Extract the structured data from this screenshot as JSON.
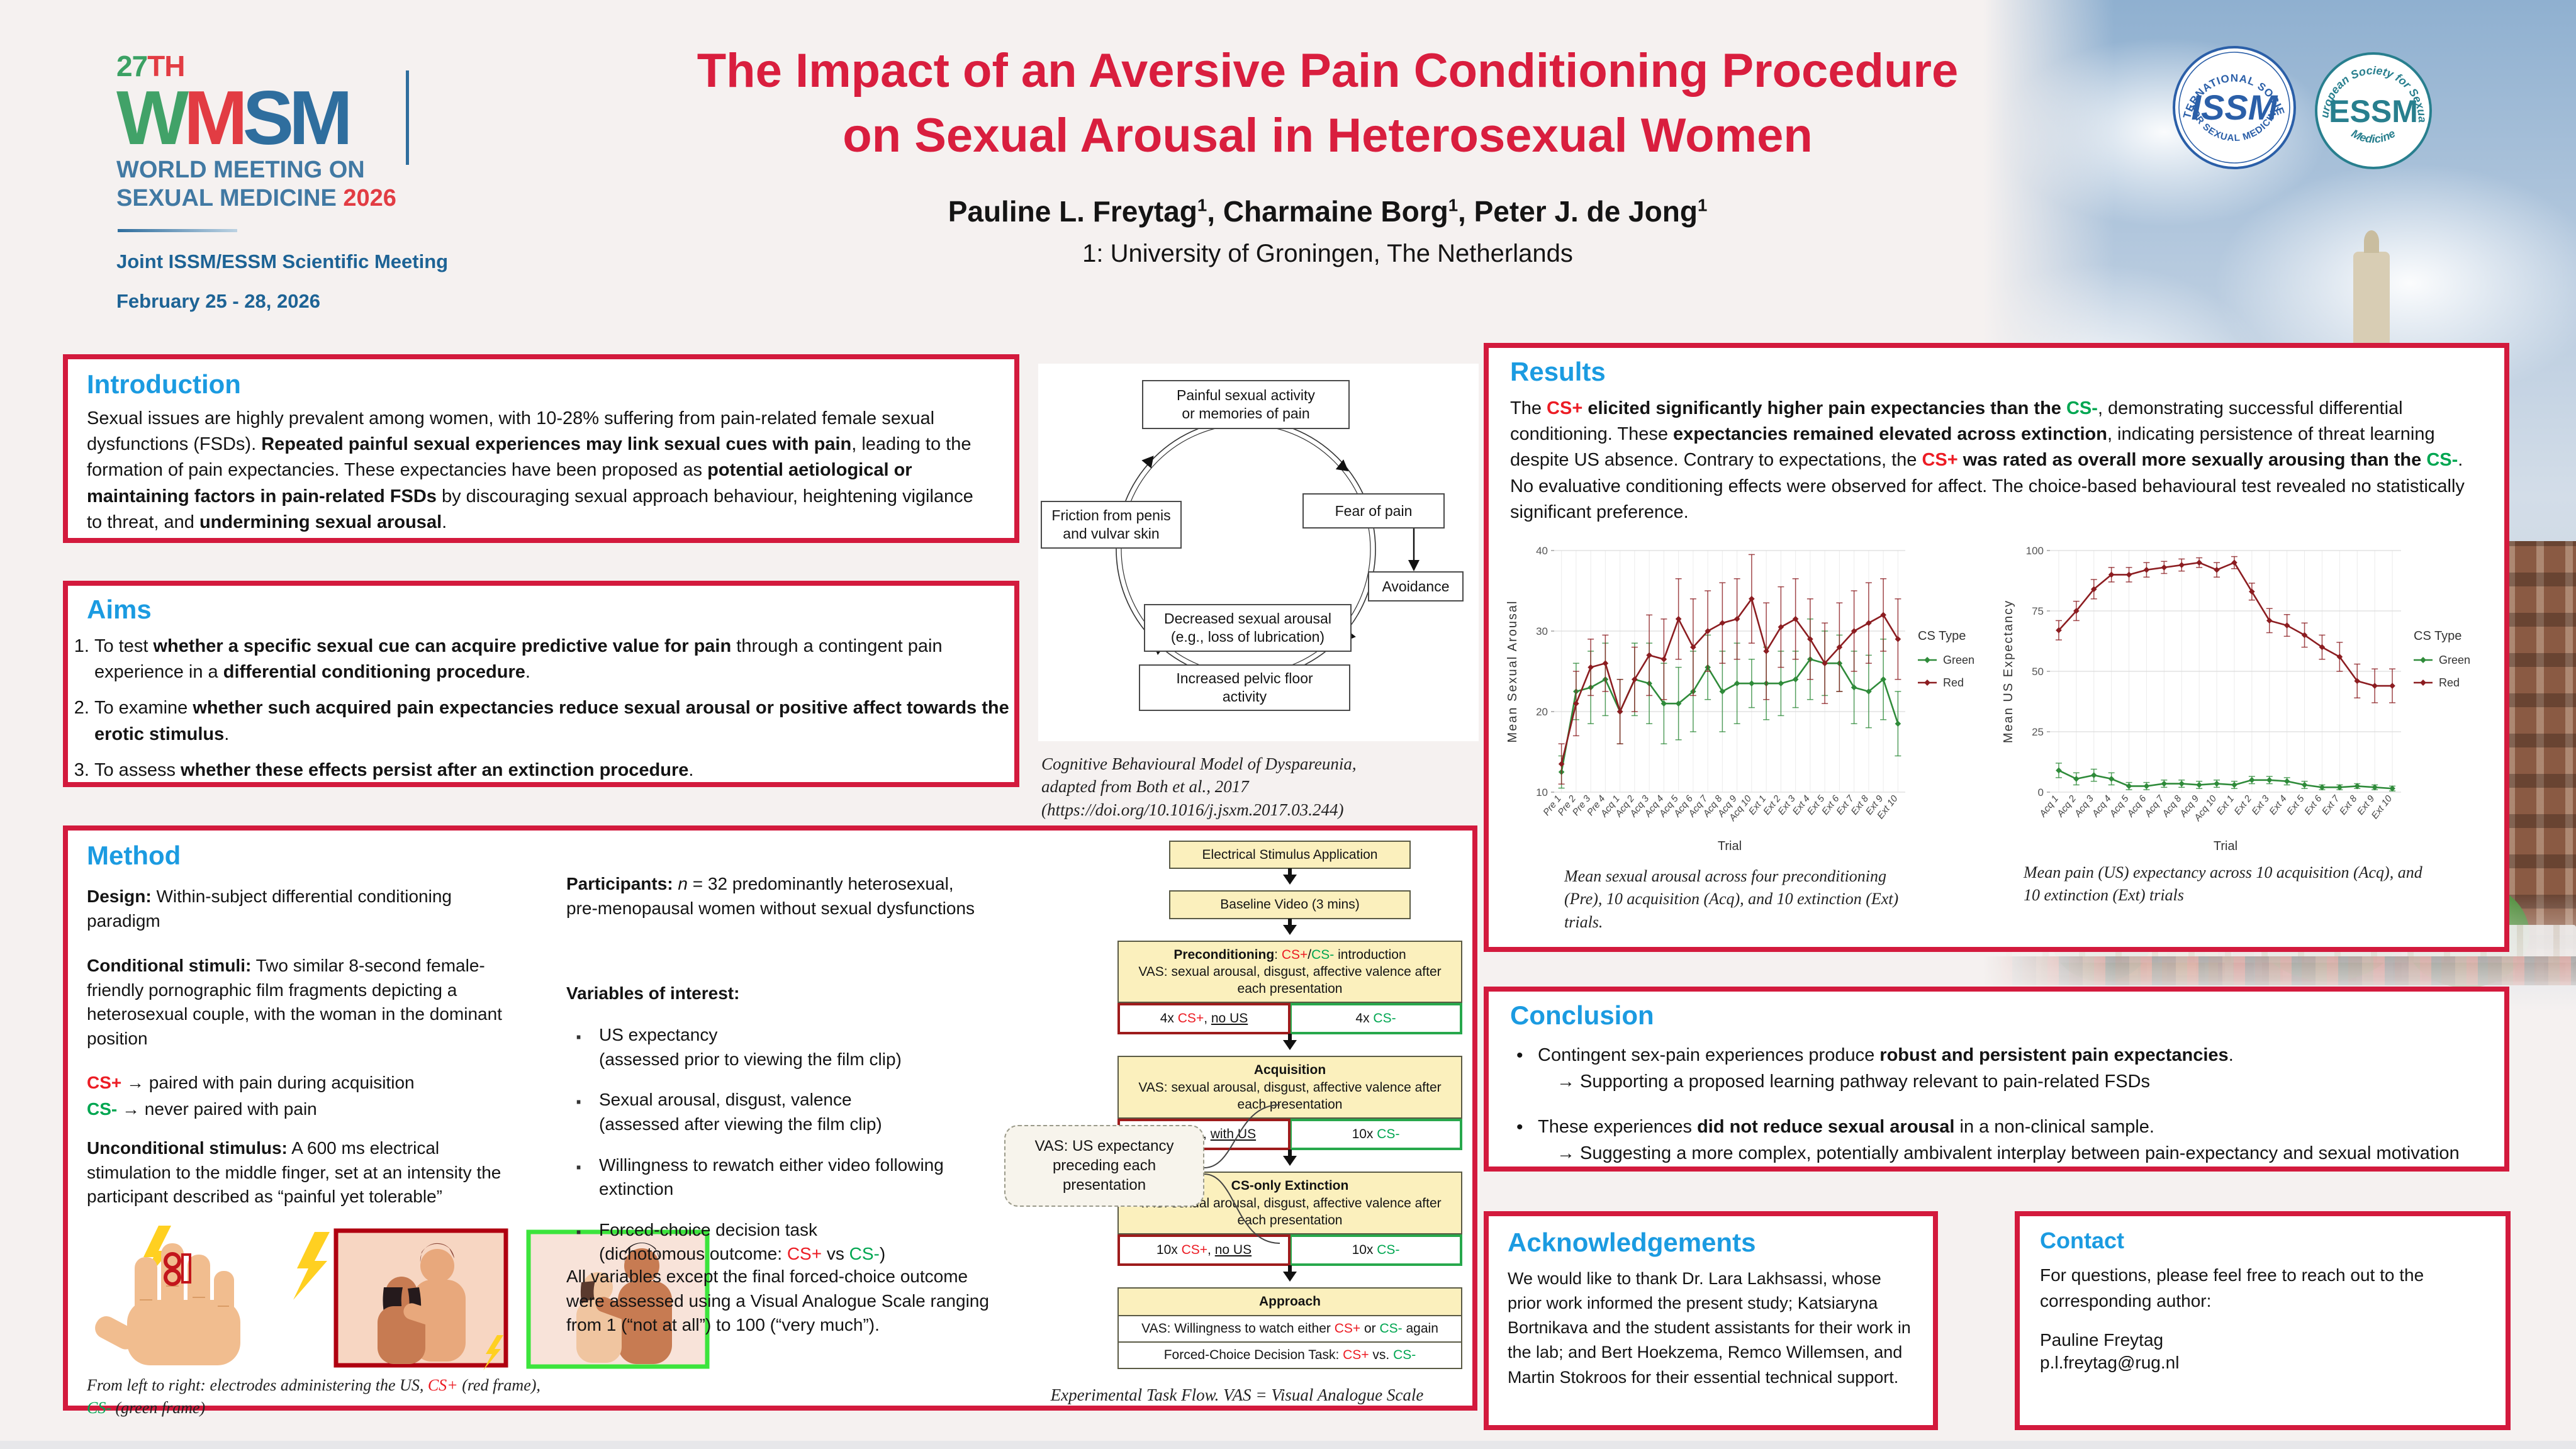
{
  "colors": {
    "accent_red": "#d31a3d",
    "heading_blue": "#1b9be1",
    "title_red": "#d91e3e",
    "cs_plus": "#ec1c24",
    "cs_minus": "#00a651",
    "flow_yellow": "#fbf0bd",
    "chart_red": "#8c1d21",
    "chart_green": "#2f8b3a"
  },
  "header": {
    "logo": {
      "year_line": [
        {
          "t": "27",
          "c": "#3ba164"
        },
        {
          "t": "TH",
          "c": "#e23c43"
        }
      ],
      "wordmark": [
        {
          "t": "W",
          "c": "#41a268"
        },
        {
          "t": "M",
          "c": "#e23c43"
        },
        {
          "t": "SM",
          "c": "#2f6e9e"
        }
      ],
      "subtitle1": [
        {
          "t": "WORLD MEETING ON",
          "c": "#4179a3"
        }
      ],
      "subtitle2": [
        {
          "t": "SEXUAL MEDICINE ",
          "c": "#4179a3"
        },
        {
          "t": "2026",
          "c": "#e23c43"
        }
      ],
      "meeting": "Joint ISSM/ESSM Scientific Meeting",
      "dates": "February 25 - 28, 2026"
    },
    "title_line1": "The Impact of an Aversive Pain Conditioning Procedure",
    "title_line2": "on Sexual Arousal in Heterosexual Women",
    "authors": [
      {
        "t": "Pauline L. Freytag"
      },
      {
        "t": "1",
        "sup": 1
      },
      {
        "t": ", Charmaine Borg"
      },
      {
        "t": "1",
        "sup": 1
      },
      {
        "t": ", Peter J. de Jong"
      },
      {
        "t": "1",
        "sup": 1
      }
    ],
    "affiliation": "1: University of Groningen, The Netherlands",
    "badges": {
      "issm": {
        "top": "INTERNATIONAL SOCIETY",
        "center": "ISSM",
        "bottom": "FOR SEXUAL MEDICINE"
      },
      "essm": {
        "top": "European Society for Sexual",
        "center": "ESSM",
        "bottom": "Medicine"
      }
    }
  },
  "introduction": {
    "heading": "Introduction",
    "body": [
      {
        "t": "Sexual issues are highly prevalent among women, with 10-28% suffering from pain-related female sexual dysfunctions (FSDs). "
      },
      {
        "t": "Repeated painful sexual experiences may link sexual cues with pain",
        "b": 1
      },
      {
        "t": ", leading to the formation of pain expectancies. These expectancies have been proposed as "
      },
      {
        "t": "potential aetiological or maintaining factors in pain-related FSDs",
        "b": 1
      },
      {
        "t": " by discouraging sexual approach behaviour, heightening vigilance to threat, and "
      },
      {
        "t": "undermining sexual arousal",
        "b": 1
      },
      {
        "t": "."
      }
    ]
  },
  "aims": {
    "heading": "Aims",
    "items": [
      [
        {
          "t": "To test "
        },
        {
          "t": "whether a specific sexual cue can acquire predictive value for pain",
          "b": 1
        },
        {
          "t": " through a contingent pain experience in a "
        },
        {
          "t": "differential conditioning procedure",
          "b": 1
        },
        {
          "t": "."
        }
      ],
      [
        {
          "t": "To examine "
        },
        {
          "t": "whether such acquired pain expectancies reduce sexual arousal or positive affect towards the erotic stimulus",
          "b": 1
        },
        {
          "t": "."
        }
      ],
      [
        {
          "t": "To assess "
        },
        {
          "t": "whether these effects persist after an extinction procedure",
          "b": 1
        },
        {
          "t": "."
        }
      ]
    ]
  },
  "diagram": {
    "nodes": [
      "Painful sexual activity\nor memories of pain",
      "Fear of pain",
      "Avoidance",
      "Decreased sexual arousal\n(e.g., loss of lubrication)",
      "Increased pelvic floor\nactivity",
      "Friction from penis\nand vulvar skin"
    ],
    "caption": "Cognitive Behavioural Model of Dyspareunia,\nadapted from Both et al., 2017\n(https://doi.org/10.1016/j.jsxm.2017.03.244)"
  },
  "method": {
    "heading": "Method",
    "design": [
      {
        "t": "Design:",
        "b": 1
      },
      {
        "t": " Within-subject differential conditioning paradigm"
      }
    ],
    "conditional": [
      {
        "t": "Conditional stimuli:",
        "b": 1
      },
      {
        "t": " Two similar 8-second female-friendly pornographic film fragments depicting a heterosexual couple, with the woman in the dominant position"
      }
    ],
    "cs_plus": [
      {
        "t": "CS+",
        "b": 1,
        "c": "red"
      },
      {
        "t": " → paired with pain during acquisition"
      }
    ],
    "cs_minus": [
      {
        "t": "CS-",
        "b": 1,
        "c": "green"
      },
      {
        "t": "  → never paired with pain"
      }
    ],
    "unconditional": [
      {
        "t": "Unconditional stimulus:",
        "b": 1
      },
      {
        "t": " A 600 ms electrical stimulation to the middle finger, set at an intensity the participant described as “painful yet tolerable”"
      }
    ],
    "img_caption": [
      {
        "t": "From left to right: electrodes administering the US, ",
        "i": 1
      },
      {
        "t": "CS+",
        "i": 1,
        "c": "red"
      },
      {
        "t": " (red frame), ",
        "i": 1
      },
      {
        "t": "CS-",
        "i": 1,
        "c": "green"
      },
      {
        "t": " (green frame)",
        "i": 1
      }
    ],
    "participants": [
      {
        "t": "Participants: ",
        "b": 1
      },
      {
        "t": "n",
        "i": 1
      },
      {
        "t": " = 32 predominantly heterosexual, pre-menopausal women without sexual dysfunctions"
      }
    ],
    "variables_heading": [
      {
        "t": "Variables of interest:",
        "b": 1
      }
    ],
    "variables": [
      [
        {
          "t": "US expectancy"
        },
        {
          "br": 1
        },
        {
          "t": "(assessed prior to viewing the film clip)"
        }
      ],
      [
        {
          "t": "Sexual arousal, disgust, valence"
        },
        {
          "br": 1
        },
        {
          "t": "(assessed after viewing the film clip)"
        }
      ],
      [
        {
          "t": "Willingness to rewatch either video following extinction"
        }
      ],
      [
        {
          "t": "Forced-choice decision task"
        },
        {
          "br": 1
        },
        {
          "t": "(dichotomous outcome: "
        },
        {
          "t": "CS+",
          "c": "red"
        },
        {
          "t": " vs "
        },
        {
          "t": "CS-",
          "c": "green"
        },
        {
          "t": ")"
        }
      ]
    ],
    "note": [
      {
        "t": "All variables except the final forced-choice outcome were assessed using a Visual Analogue Scale ranging from 1 (“not at all”) to 100 (“very much”)."
      }
    ],
    "flow": {
      "stages": [
        {
          "kind": "simple",
          "label": [
            {
              "t": "Electrical Stimulus Application"
            }
          ]
        },
        {
          "kind": "simple",
          "label": [
            {
              "t": "Baseline Video (3 mins)"
            }
          ]
        },
        {
          "kind": "split",
          "header": [
            {
              "t": "Preconditioning",
              "b": 1
            },
            {
              "t": ": "
            },
            {
              "t": "CS+",
              "c": "red"
            },
            {
              "t": "/"
            },
            {
              "t": "CS-",
              "c": "green"
            },
            {
              "t": " introduction"
            },
            {
              "br": 1
            },
            {
              "t": "VAS: sexual arousal, disgust, affective valence after each presentation"
            }
          ],
          "left": [
            {
              "t": "4x "
            },
            {
              "t": "CS+",
              "c": "red"
            },
            {
              "t": ", "
            },
            {
              "t": "no US",
              "u": 1
            }
          ],
          "right": [
            {
              "t": "4x "
            },
            {
              "t": "CS-",
              "c": "green"
            }
          ]
        },
        {
          "kind": "split",
          "header": [
            {
              "t": "Acquisition",
              "b": 1
            },
            {
              "br": 1
            },
            {
              "t": "VAS: sexual arousal, disgust, affective valence after each presentation"
            }
          ],
          "left": [
            {
              "t": "10x "
            },
            {
              "t": "CS+",
              "c": "red"
            },
            {
              "t": ", "
            },
            {
              "t": "with US",
              "u": 1
            }
          ],
          "right": [
            {
              "t": "10x "
            },
            {
              "t": "CS-",
              "c": "green"
            }
          ]
        },
        {
          "kind": "split",
          "header": [
            {
              "t": "CS-only Extinction",
              "b": 1
            },
            {
              "br": 1
            },
            {
              "t": "VAS: sexual arousal, disgust, affective valence after each presentation"
            }
          ],
          "left": [
            {
              "t": "10x "
            },
            {
              "t": "CS+",
              "c": "red"
            },
            {
              "t": ", "
            },
            {
              "t": "no US",
              "u": 1
            }
          ],
          "right": [
            {
              "t": "10x "
            },
            {
              "t": "CS-",
              "c": "green"
            }
          ]
        },
        {
          "kind": "approach",
          "header": [
            {
              "t": "Approach",
              "b": 1
            }
          ],
          "rows": [
            [
              {
                "t": "VAS: Willingness to watch either "
              },
              {
                "t": "CS+",
                "c": "red"
              },
              {
                "t": " or "
              },
              {
                "t": "CS-",
                "c": "green"
              },
              {
                "t": " again"
              }
            ],
            [
              {
                "t": "Forced-Choice Decision Task: "
              },
              {
                "t": "CS+",
                "c": "red"
              },
              {
                "t": " vs. "
              },
              {
                "t": "CS-",
                "c": "green"
              }
            ]
          ]
        }
      ],
      "side_note": "VAS: US expectancy\npreceding each\npresentation",
      "caption": "Experimental Task Flow. VAS = Visual Analogue Scale"
    }
  },
  "results": {
    "heading": "Results",
    "body": [
      {
        "t": "The "
      },
      {
        "t": "CS+",
        "b": 1,
        "c": "red"
      },
      {
        "t": " "
      },
      {
        "t": "elicited significantly higher pain expectancies than the",
        "b": 1
      },
      {
        "t": " "
      },
      {
        "t": "CS-",
        "b": 1,
        "c": "green"
      },
      {
        "t": ", demonstrating successful differential conditioning. These "
      },
      {
        "t": "expectancies remained elevated across extinction",
        "b": 1
      },
      {
        "t": ", indicating persistence of threat learning despite US absence. Contrary to expectations, the "
      },
      {
        "t": "CS+",
        "b": 1,
        "c": "red"
      },
      {
        "t": " "
      },
      {
        "t": "was rated as overall more sexually arousing than the",
        "b": 1
      },
      {
        "t": " "
      },
      {
        "t": "CS-",
        "b": 1,
        "c": "green"
      },
      {
        "t": ". No evaluative conditioning effects were observed for affect. The choice-based behavioural test revealed no statistically significant preference."
      }
    ]
  },
  "chart_data": [
    {
      "type": "line",
      "title": "",
      "xlabel": "Trial",
      "ylabel": "Mean Sexual Arousal",
      "ylim": [
        10,
        40
      ],
      "yticks": [
        10,
        20,
        30,
        40
      ],
      "legend_title": "CS Type",
      "legend_position": "right",
      "grid": true,
      "categories": [
        "Pre 1",
        "Pre 2",
        "Pre 3",
        "Pre 4",
        "Acq 1",
        "Acq 2",
        "Acq 3",
        "Acq 4",
        "Acq 5",
        "Acq 6",
        "Acq 7",
        "Acq 8",
        "Acq 9",
        "Acq 10",
        "Ext 1",
        "Ext 2",
        "Ext 3",
        "Ext 4",
        "Ext 5",
        "Ext 6",
        "Ext 7",
        "Ext 8",
        "Ext 9",
        "Ext 10"
      ],
      "series": [
        {
          "name": "Green",
          "color": "#2f8b3a",
          "values": [
            12.5,
            22.5,
            23,
            24,
            20,
            24,
            23.5,
            21,
            21,
            22.5,
            25.5,
            22.5,
            23.5,
            23.5,
            23.5,
            23.5,
            24,
            26.5,
            26,
            26,
            23,
            22.5,
            24,
            18.5
          ],
          "errors": [
            2,
            3.5,
            4.5,
            4.5,
            4,
            4.5,
            5,
            5,
            4.5,
            5,
            4,
            5,
            5,
            3,
            4.5,
            4,
            3.5,
            5,
            4,
            3.5,
            4.5,
            4.5,
            5,
            4
          ]
        },
        {
          "name": "Red",
          "color": "#8c1d21",
          "values": [
            13.5,
            21,
            25.5,
            26,
            20,
            24,
            27,
            26.5,
            31.5,
            28,
            30,
            31,
            31.5,
            34,
            27.5,
            30.5,
            31.5,
            29,
            26,
            28,
            30,
            31,
            32,
            29
          ],
          "errors": [
            2.5,
            4,
            3.5,
            3.5,
            4,
            4,
            5,
            5,
            5,
            6,
            5,
            5,
            5,
            5.5,
            6,
            5,
            5,
            5,
            5,
            5.5,
            5,
            5,
            4.5,
            5
          ]
        }
      ],
      "caption": "Mean sexual arousal across four preconditioning (Pre), 10 acquisition (Acq), and 10 extinction (Ext) trials."
    },
    {
      "type": "line",
      "title": "",
      "xlabel": "Trial",
      "ylabel": "Mean US Expectancy",
      "ylim": [
        0,
        100
      ],
      "yticks": [
        0,
        25,
        50,
        75,
        100
      ],
      "legend_title": "CS Type",
      "legend_position": "right",
      "grid": true,
      "categories": [
        "Acq 1",
        "Acq 2",
        "Acq 3",
        "Acq 4",
        "Acq 5",
        "Acq 6",
        "Acq 7",
        "Acq 8",
        "Acq 9",
        "Acq 10",
        "Ext 1",
        "Ext 2",
        "Ext 3",
        "Ext 4",
        "Ext 5",
        "Ext 6",
        "Ext 7",
        "Ext 8",
        "Ext 9",
        "Ext 10"
      ],
      "series": [
        {
          "name": "Green",
          "color": "#2f8b3a",
          "values": [
            9,
            5.5,
            7,
            5.5,
            2.5,
            2.5,
            3.5,
            3.5,
            3,
            3.5,
            3,
            5,
            5,
            4.5,
            3,
            2,
            2,
            2.5,
            2,
            1.5
          ],
          "errors": [
            3,
            2.5,
            2.5,
            2.5,
            1.5,
            1.5,
            1.5,
            1.5,
            1.5,
            1.5,
            1.5,
            1.5,
            1.5,
            1.5,
            1.5,
            1,
            1,
            1,
            1,
            1
          ]
        },
        {
          "name": "Red",
          "color": "#8c1d21",
          "values": [
            67,
            75,
            84,
            90,
            90,
            92,
            93,
            94,
            95,
            92,
            95,
            83,
            71,
            69,
            65,
            60,
            56,
            46,
            44,
            44
          ],
          "errors": [
            4,
            4,
            4,
            3,
            3,
            3,
            2.5,
            2.5,
            2,
            3,
            2.5,
            3.5,
            5,
            4.5,
            5,
            5,
            6,
            7,
            7,
            7
          ]
        }
      ],
      "caption": "Mean pain (US) expectancy across 10 acquisition (Acq), and 10 extinction (Ext) trials"
    }
  ],
  "conclusion": {
    "heading": "Conclusion",
    "bullets": [
      {
        "main": [
          {
            "t": "Contingent sex-pain experiences produce "
          },
          {
            "t": "robust and persistent pain expectancies",
            "b": 1
          },
          {
            "t": "."
          }
        ],
        "sub": [
          {
            "t": "→ Supporting a proposed learning pathway relevant to pain-related FSDs"
          }
        ]
      },
      {
        "main": [
          {
            "t": "These experiences "
          },
          {
            "t": "did not reduce sexual arousal",
            "b": 1
          },
          {
            "t": " in a non-clinical sample."
          }
        ],
        "sub": [
          {
            "t": "→ Suggesting a more complex, potentially ambivalent interplay between pain-expectancy and sexual motivation"
          }
        ]
      }
    ]
  },
  "acknowledgements": {
    "heading": "Acknowledgements",
    "body": "We would like to thank Dr. Lara Lakhsassi, whose prior work informed the present study; Katsiaryna Bortnikava and the student assistants for their work in the lab; and Bert Hoekzema, Remco Willemsen, and Martin Stokroos for their essential technical support."
  },
  "contact": {
    "heading": "Contact",
    "intro": "For questions, please feel free to reach out to the corresponding author:",
    "name": "Pauline Freytag",
    "email": "p.l.freytag@rug.nl"
  }
}
